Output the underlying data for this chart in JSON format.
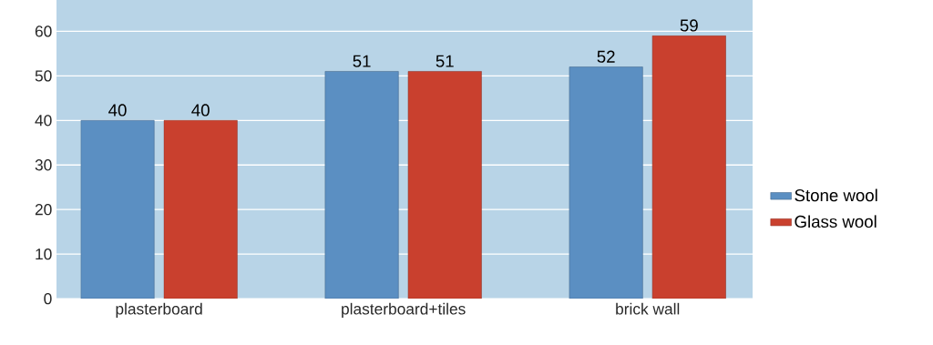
{
  "chart_data": {
    "type": "bar",
    "categories": [
      "plasterboard",
      "plasterboard+tiles",
      "brick wall"
    ],
    "series": [
      {
        "name": "Stone wool",
        "color": "#5b8fc2",
        "values": [
          40,
          51,
          52
        ],
        "value_labels": [
          "40",
          "51",
          "52"
        ]
      },
      {
        "name": "Glass wool",
        "color": "#c9402e",
        "values": [
          40,
          51,
          59
        ],
        "value_labels": [
          "40",
          "51",
          "59"
        ]
      }
    ],
    "ylim": [
      0,
      67
    ],
    "yticks": [
      0,
      10,
      20,
      30,
      40,
      50,
      60
    ],
    "grid": "y",
    "legend": "right"
  }
}
